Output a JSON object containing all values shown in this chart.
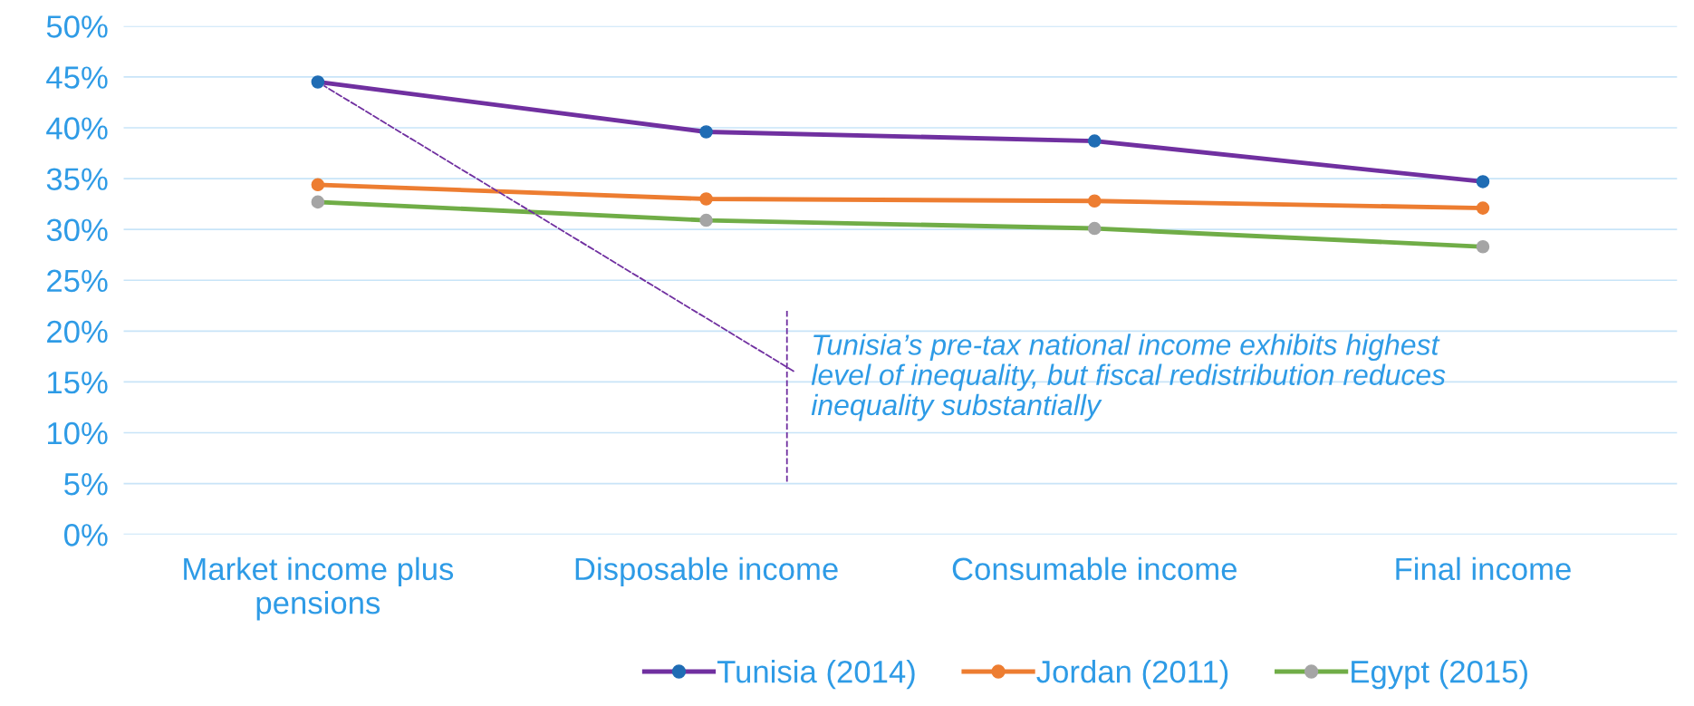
{
  "chart_data": {
    "type": "line",
    "categories": [
      "Market income plus\npensions",
      "Disposable income",
      "Consumable income",
      "Final income"
    ],
    "series": [
      {
        "name": "Tunisia (2014)",
        "color": "#7030a0",
        "colors": [
          "#1f6cb4",
          "#1f6cb4",
          "#1f6cb4",
          "#1f6cb4"
        ],
        "values": [
          44.5,
          39.6,
          38.7,
          34.7
        ]
      },
      {
        "name": "Jordan (2011)",
        "color": "#ed7d31",
        "colors": [
          "#ed7d31",
          "#ed7d31",
          "#ed7d31",
          "#ed7d31"
        ],
        "values": [
          34.4,
          33.0,
          32.8,
          32.1
        ]
      },
      {
        "name": "Egypt (2015)",
        "color": "#70ad47",
        "colors": [
          "#a5a5a5",
          "#a5a5a5",
          "#a5a5a5",
          "#a5a5a5"
        ],
        "values": [
          32.7,
          30.9,
          30.1,
          28.3
        ]
      }
    ],
    "ylim": [
      0,
      50
    ],
    "yticks": [
      {
        "value": 0,
        "label": "0%"
      },
      {
        "value": 5,
        "label": "5%"
      },
      {
        "value": 10,
        "label": "10%"
      },
      {
        "value": 15,
        "label": "15%"
      },
      {
        "value": 20,
        "label": "20%"
      },
      {
        "value": 25,
        "label": "25%"
      },
      {
        "value": 30,
        "label": "30%"
      },
      {
        "value": 35,
        "label": "35%"
      },
      {
        "value": 40,
        "label": "40%"
      },
      {
        "value": 45,
        "label": "45%"
      },
      {
        "value": 50,
        "label": "50%"
      }
    ],
    "annotations": [
      {
        "text": "Tunisia’s pre-tax national income exhibits highest\nlevel of inequality, but fiscal redistribution reduces\ninequality substantially",
        "x": "Market income plus\npensions",
        "y": 44.5
      }
    ],
    "grid": "y",
    "legend": "bottom",
    "marker": "circle",
    "line_style": "solid"
  }
}
